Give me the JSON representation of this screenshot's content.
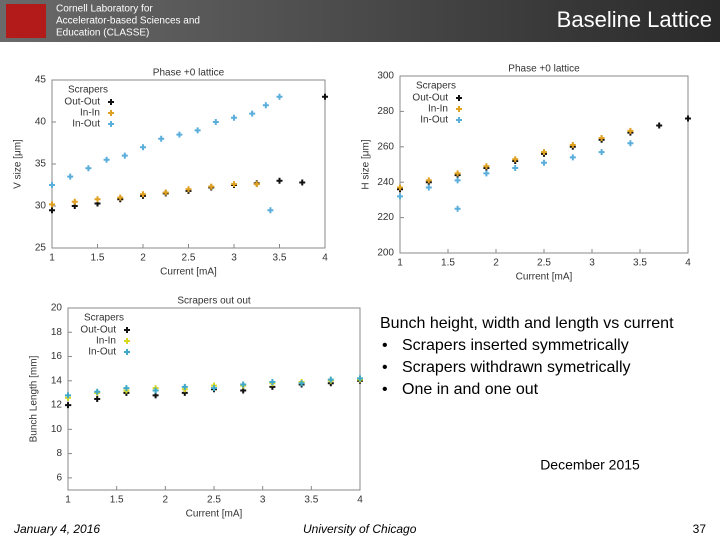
{
  "header": {
    "org_lines": [
      "Cornell Laboratory for",
      "Accelerator-based Sciences and",
      "Education (CLASSE)"
    ],
    "title": "Baseline Lattice"
  },
  "chart_data": [
    {
      "type": "scatter",
      "title": "Phase +0 lattice",
      "x_label": "Current [mA]",
      "y_label": "V size [μm]",
      "legend_title": "Scrapers",
      "xlim": [
        1,
        4
      ],
      "ylim": [
        25,
        45
      ],
      "xticks": [
        1,
        1.5,
        2,
        2.5,
        3,
        3.5,
        4
      ],
      "yticks": [
        25,
        30,
        35,
        40,
        45
      ],
      "series": [
        {
          "name": "Out-Out",
          "color": "#111111",
          "x": [
            1,
            1.25,
            1.5,
            1.75,
            2,
            2.25,
            2.5,
            2.75,
            3,
            3.25,
            3.5,
            3.75,
            4
          ],
          "values": [
            29.5,
            30,
            30.3,
            30.8,
            31.2,
            31.5,
            31.8,
            32.2,
            32.5,
            32.7,
            33,
            32.8,
            43
          ]
        },
        {
          "name": "In-In",
          "color": "#e0a020",
          "x": [
            1,
            1.25,
            1.5,
            1.75,
            2,
            2.25,
            2.5,
            2.75,
            3,
            3.25
          ],
          "values": [
            30.2,
            30.5,
            30.8,
            31,
            31.4,
            31.6,
            32,
            32.3,
            32.6,
            32.6
          ]
        },
        {
          "name": "In-Out",
          "color": "#5aaedc",
          "x": [
            1,
            1.2,
            1.4,
            1.6,
            1.8,
            2,
            2.2,
            2.4,
            2.6,
            2.8,
            3,
            3.2,
            3.35,
            3.5,
            3.4
          ],
          "values": [
            32.5,
            33.5,
            34.5,
            35.5,
            36,
            37,
            38,
            38.5,
            39,
            40,
            40.5,
            41,
            42,
            43,
            29.5
          ]
        }
      ]
    },
    {
      "type": "scatter",
      "title": "Phase +0 lattice",
      "x_label": "Current [mA]",
      "y_label": "H size [μm]",
      "legend_title": "Scrapers",
      "xlim": [
        1,
        4
      ],
      "ylim": [
        200,
        300
      ],
      "xticks": [
        1,
        1.5,
        2,
        2.5,
        3,
        3.5,
        4
      ],
      "yticks": [
        200,
        220,
        240,
        260,
        280,
        300
      ],
      "series": [
        {
          "name": "Out-Out",
          "color": "#111111",
          "x": [
            1,
            1.3,
            1.6,
            1.9,
            2.2,
            2.5,
            2.8,
            3.1,
            3.4,
            3.7,
            4
          ],
          "values": [
            236,
            240,
            244,
            248,
            252,
            256,
            260,
            264,
            268,
            272,
            276
          ]
        },
        {
          "name": "In-In",
          "color": "#e0a020",
          "x": [
            1,
            1.3,
            1.6,
            1.9,
            2.2,
            2.5,
            2.8,
            3.1,
            3.4
          ],
          "values": [
            237,
            241,
            245,
            249,
            253,
            257,
            261,
            265,
            269
          ]
        },
        {
          "name": "In-Out",
          "color": "#5aaedc",
          "x": [
            1,
            1.3,
            1.6,
            1.9,
            2.2,
            2.5,
            2.8,
            3.1,
            3.4,
            1.6
          ],
          "values": [
            232,
            237,
            241,
            245,
            248,
            251,
            254,
            257,
            262,
            225
          ]
        }
      ]
    },
    {
      "type": "scatter",
      "title": "Scrapers out out",
      "x_label": "Current [mA]",
      "y_label": "Bunch Length [mm]",
      "legend_title": "Scrapers",
      "xlim": [
        1,
        4
      ],
      "ylim": [
        5,
        20
      ],
      "xticks": [
        1,
        1.5,
        2,
        2.5,
        3,
        3.5,
        4
      ],
      "yticks": [
        6,
        8,
        10,
        12,
        14,
        16,
        18,
        20
      ],
      "series": [
        {
          "name": "Out-Out",
          "color": "#111111",
          "x": [
            1,
            1.3,
            1.6,
            1.9,
            2.2,
            2.5,
            2.8,
            3.1,
            3.4,
            3.7,
            4
          ],
          "values": [
            12,
            12.5,
            13,
            12.8,
            13,
            13.3,
            13.2,
            13.5,
            13.7,
            13.8,
            14
          ]
        },
        {
          "name": "In-In",
          "color": "#d8d820",
          "x": [
            1,
            1.3,
            1.6,
            1.9,
            2.2,
            2.5,
            2.8,
            3.1,
            3.4,
            3.7,
            4
          ],
          "values": [
            12.6,
            13,
            13.2,
            13.4,
            13.3,
            13.6,
            13.6,
            13.8,
            13.9,
            14,
            14.1
          ]
        },
        {
          "name": "In-Out",
          "color": "#40a8c8",
          "x": [
            1,
            1.3,
            1.6,
            1.9,
            2.2,
            2.5,
            2.8,
            3.1,
            3.4,
            3.7,
            4
          ],
          "values": [
            12.8,
            13.1,
            13.4,
            13.2,
            13.5,
            13.4,
            13.7,
            13.9,
            13.8,
            14.1,
            14.2
          ]
        }
      ]
    }
  ],
  "notes": {
    "heading": "Bunch height, width and length vs current",
    "bullets": [
      "Scrapers inserted symmetrically",
      "Scrapers withdrawn symetrically",
      "One in and one out"
    ],
    "date": "December 2015"
  },
  "footer": {
    "date": "January 4, 2016",
    "venue": "University of Chicago",
    "page": "37"
  }
}
